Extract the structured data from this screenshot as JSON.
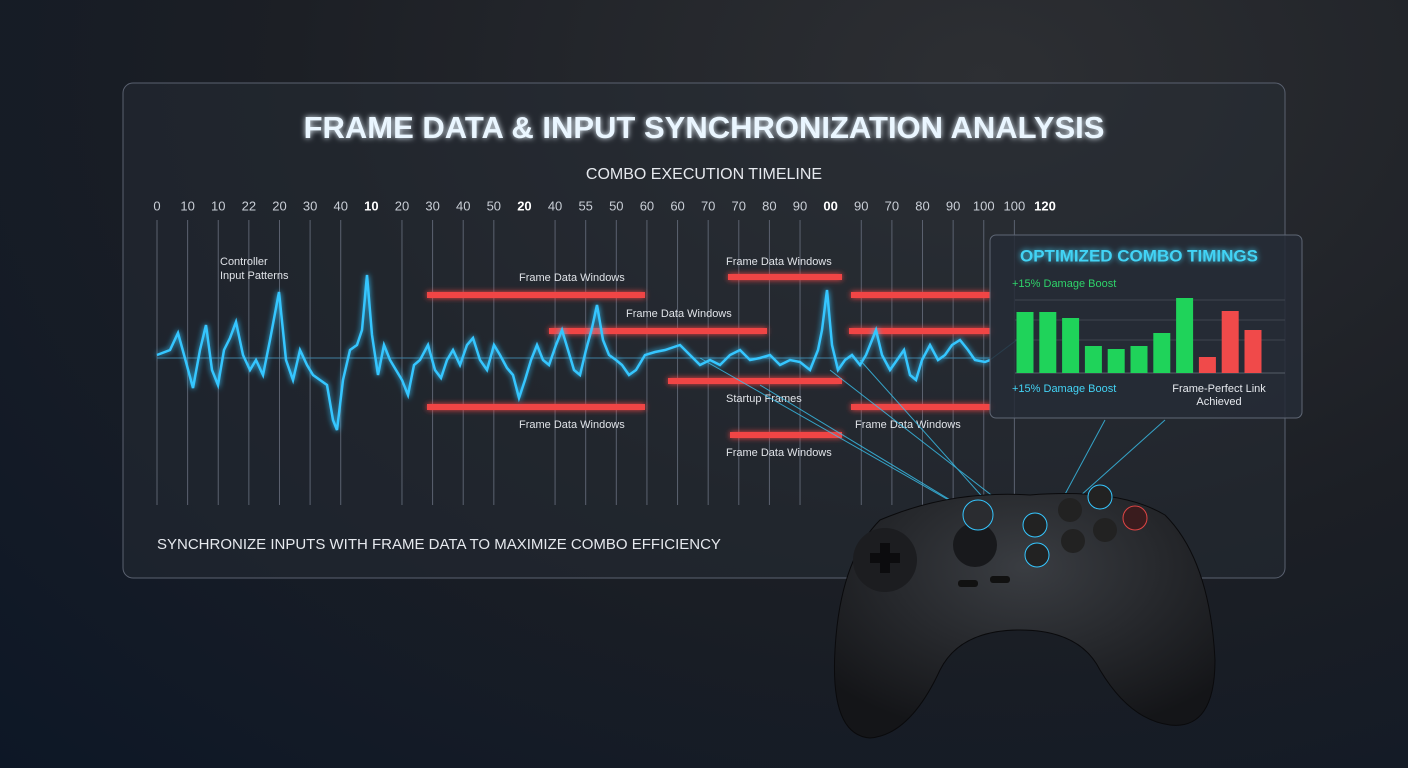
{
  "title": "FRAME DATA & INPUT SYNCHRONIZATION ANALYSIS",
  "timeline": {
    "title": "COMBO EXECUTION TIMELINE",
    "ticks": [
      {
        "label": "0",
        "major": false
      },
      {
        "label": "10",
        "major": false
      },
      {
        "label": "10",
        "major": false
      },
      {
        "label": "22",
        "major": false
      },
      {
        "label": "20",
        "major": false
      },
      {
        "label": "30",
        "major": false
      },
      {
        "label": "40",
        "major": false
      },
      {
        "label": "10",
        "major": true
      },
      {
        "label": "20",
        "major": false
      },
      {
        "label": "30",
        "major": false
      },
      {
        "label": "40",
        "major": false
      },
      {
        "label": "50",
        "major": false
      },
      {
        "label": "20",
        "major": true
      },
      {
        "label": "40",
        "major": false
      },
      {
        "label": "55",
        "major": false
      },
      {
        "label": "50",
        "major": false
      },
      {
        "label": "60",
        "major": false
      },
      {
        "label": "60",
        "major": false
      },
      {
        "label": "70",
        "major": false
      },
      {
        "label": "70",
        "major": false
      },
      {
        "label": "80",
        "major": false
      },
      {
        "label": "90",
        "major": false
      },
      {
        "label": "00",
        "major": true
      },
      {
        "label": "90",
        "major": false
      },
      {
        "label": "70",
        "major": false
      },
      {
        "label": "80",
        "major": false
      },
      {
        "label": "90",
        "major": false
      },
      {
        "label": "100",
        "major": false
      },
      {
        "label": "100",
        "major": false
      },
      {
        "label": "120",
        "major": true
      }
    ],
    "annotations": {
      "controller_input": [
        "Controller",
        "Input Patterns"
      ],
      "windows": [
        "Frame Data Windows",
        "Frame Data Windows",
        "Frame Data Windows",
        "Frame Data Windows",
        "Frame Data Windows",
        "Frame Data Windows"
      ],
      "startup": "Startup Frames"
    }
  },
  "footer": "SYNCHRONIZE INPUTS WITH FRAME DATA TO MAXIMIZE COMBO EFFICIENCY",
  "panel": {
    "title": "OPTIMIZED COMBO TIMINGS",
    "boost_top": "+15% Damage Boost",
    "boost_bottom": "+15% Damage Boost",
    "link": [
      "Frame-Perfect Link",
      "Achieved"
    ],
    "bars": [
      {
        "value": 61,
        "color": "#1fd35a"
      },
      {
        "value": 61,
        "color": "#1fd35a"
      },
      {
        "value": 55,
        "color": "#1fd35a"
      },
      {
        "value": 27,
        "color": "#1fd35a"
      },
      {
        "value": 24,
        "color": "#1fd35a"
      },
      {
        "value": 27,
        "color": "#1fd35a"
      },
      {
        "value": 40,
        "color": "#1fd35a"
      },
      {
        "value": 75,
        "color": "#1fd35a"
      },
      {
        "value": 16,
        "color": "#f04a4a"
      },
      {
        "value": 62,
        "color": "#f04a4a"
      },
      {
        "value": 43,
        "color": "#f04a4a"
      }
    ]
  }
}
